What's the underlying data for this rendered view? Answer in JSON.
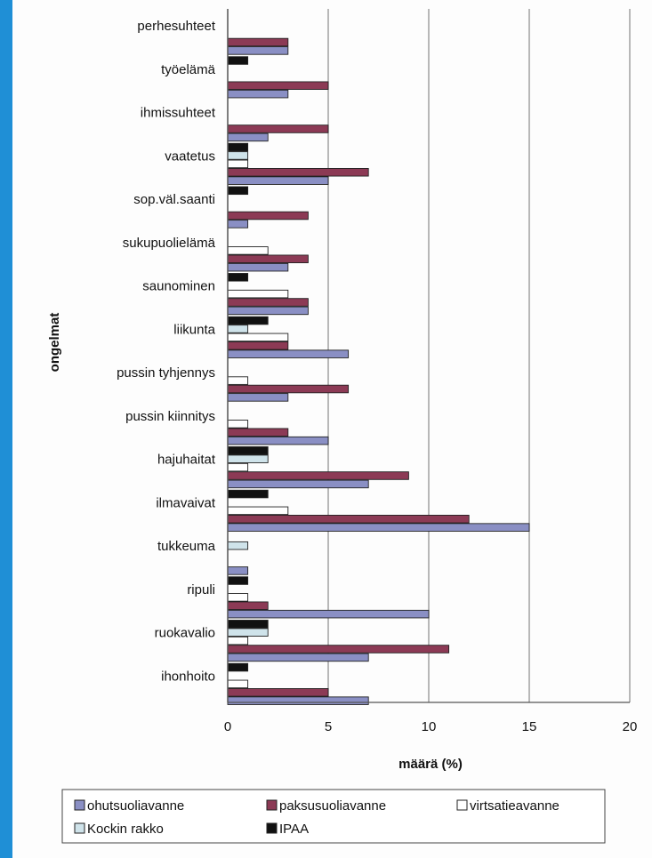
{
  "chart_data": {
    "type": "bar",
    "orientation": "horizontal",
    "ylabel": "ongelmat",
    "xlabel": "määrä (%)",
    "xlim": [
      0,
      20
    ],
    "xticks": [
      0,
      5,
      10,
      15,
      20
    ],
    "grid": true,
    "legend_position": "bottom",
    "categories": [
      "perhesuhteet",
      "työelämä",
      "ihmissuhteet",
      "vaatetus",
      "sop.väl.saanti",
      "sukupuolielämä",
      "saunominen",
      "liikunta",
      "pussin tyhjennys",
      "pussin kiinnitys",
      "hajuhaitat",
      "ilmavaivat",
      "tukkeuma",
      "ripuli",
      "ruokavalio",
      "ihonhoito"
    ],
    "series": [
      {
        "name": "ohutsuoliavanne",
        "color": "#8a8fc4",
        "values": [
          3,
          3,
          2,
          5,
          1,
          3,
          4,
          6,
          3,
          5,
          7,
          15,
          1,
          10,
          7,
          7
        ]
      },
      {
        "name": "paksusuoliavanne",
        "color": "#8c3a55",
        "values": [
          3,
          5,
          5,
          7,
          4,
          4,
          4,
          3,
          6,
          3,
          9,
          12,
          0,
          2,
          11,
          5
        ]
      },
      {
        "name": "virtsatieavanne",
        "color": "#ffffff",
        "values": [
          0,
          0,
          0,
          1,
          0,
          2,
          3,
          3,
          1,
          1,
          1,
          3,
          0,
          1,
          1,
          1
        ]
      },
      {
        "name": "Kockin rakko",
        "color": "#cfe3ea",
        "values": [
          0,
          0,
          0,
          1,
          0,
          0,
          0,
          1,
          0,
          0,
          2,
          0,
          1,
          0,
          2,
          0
        ]
      },
      {
        "name": "IPAA",
        "color": "#111111",
        "values": [
          0,
          1,
          0,
          1,
          1,
          0,
          1,
          2,
          0,
          0,
          2,
          2,
          0,
          1,
          2,
          1
        ]
      }
    ]
  }
}
